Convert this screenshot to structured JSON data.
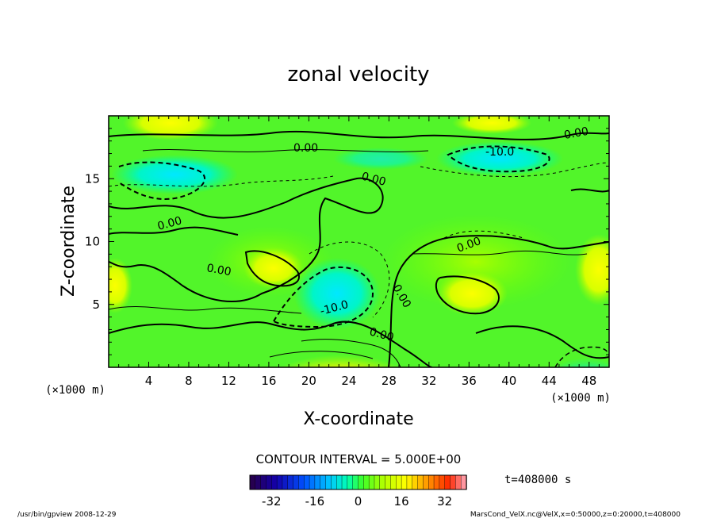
{
  "chart_data": {
    "type": "heatmap",
    "title": "zonal velocity",
    "xlabel": "X-coordinate",
    "ylabel": "Z-coordinate",
    "x_unit": "(×1000 m)",
    "y_unit": "(×1000 m)",
    "xlim": [
      0,
      50
    ],
    "ylim": [
      0,
      20
    ],
    "x_ticks": [
      4,
      8,
      12,
      16,
      20,
      24,
      28,
      32,
      36,
      40,
      44,
      48
    ],
    "y_ticks": [
      5,
      10,
      15
    ],
    "contour_interval_label": "CONTOUR INTERVAL = 5.000E+00",
    "contour_labels": [
      "0.00",
      "0.00",
      "-10.0",
      "0.00",
      "0.00",
      "0.00",
      "0.00",
      "0.00",
      "-10.0",
      "0.00"
    ],
    "colorbar": {
      "ticks": [
        "-32",
        "-16",
        "0",
        "16",
        "32"
      ],
      "range": [
        -40,
        40
      ]
    },
    "time_label": "t=408000 s",
    "grid": false,
    "legend": "colorbar-bottom"
  },
  "footer": {
    "left": "/usr/bin/gpview   2008-12-29",
    "right": "MarsCond_VelX.nc@VelX,x=0:50000,z=0:20000,t=408000"
  }
}
